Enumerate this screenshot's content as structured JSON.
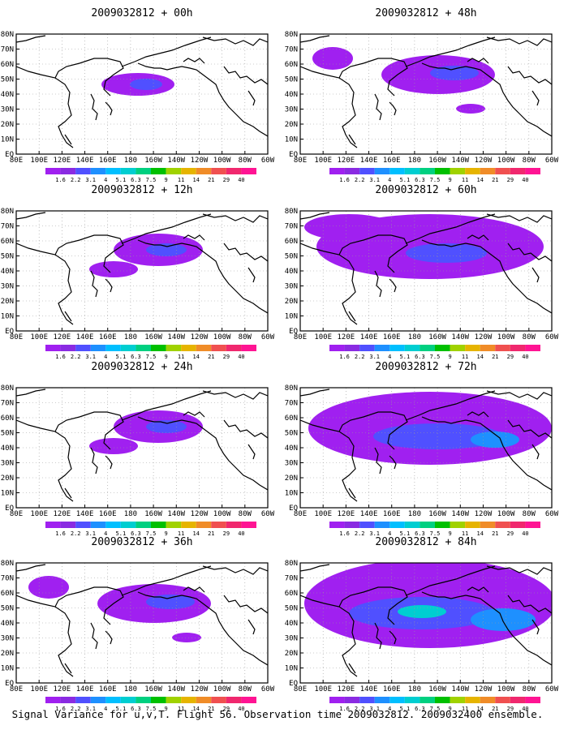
{
  "caption": "Signal Variance for u,v,T. Flight 56. Observation time 2009032812. 2009032400 ensemble.",
  "lon_ticks": [
    "80E",
    "100E",
    "120E",
    "140E",
    "160E",
    "180",
    "160W",
    "140W",
    "120W",
    "100W",
    "80W",
    "60W"
  ],
  "lat_ticks": [
    "80N",
    "70N",
    "60N",
    "50N",
    "40N",
    "30N",
    "20N",
    "10N",
    "EQ"
  ],
  "colorbar": {
    "labels": [
      "1.6",
      "2.2",
      "3.1",
      "4",
      "5.1",
      "6.3",
      "7.5",
      "9",
      "11",
      "14",
      "21",
      "29",
      "40"
    ],
    "colors": [
      "#a020f0",
      "#8a2be2",
      "#5050ff",
      "#1e90ff",
      "#00bfff",
      "#00ced1",
      "#00d080",
      "#00c000",
      "#a0d200",
      "#e6b400",
      "#f08c28",
      "#f05050",
      "#f0286e",
      "#ff1493"
    ]
  },
  "panels": [
    {
      "title": "2009032812 + 00h",
      "level": 1
    },
    {
      "title": "2009032812 + 48h",
      "level": 3
    },
    {
      "title": "2009032812 + 12h",
      "level": 2
    },
    {
      "title": "2009032812 + 60h",
      "level": 4
    },
    {
      "title": "2009032812 + 24h",
      "level": 2
    },
    {
      "title": "2009032812 + 72h",
      "level": 5
    },
    {
      "title": "2009032812 + 36h",
      "level": 3
    },
    {
      "title": "2009032812 + 84h",
      "level": 6
    }
  ]
}
